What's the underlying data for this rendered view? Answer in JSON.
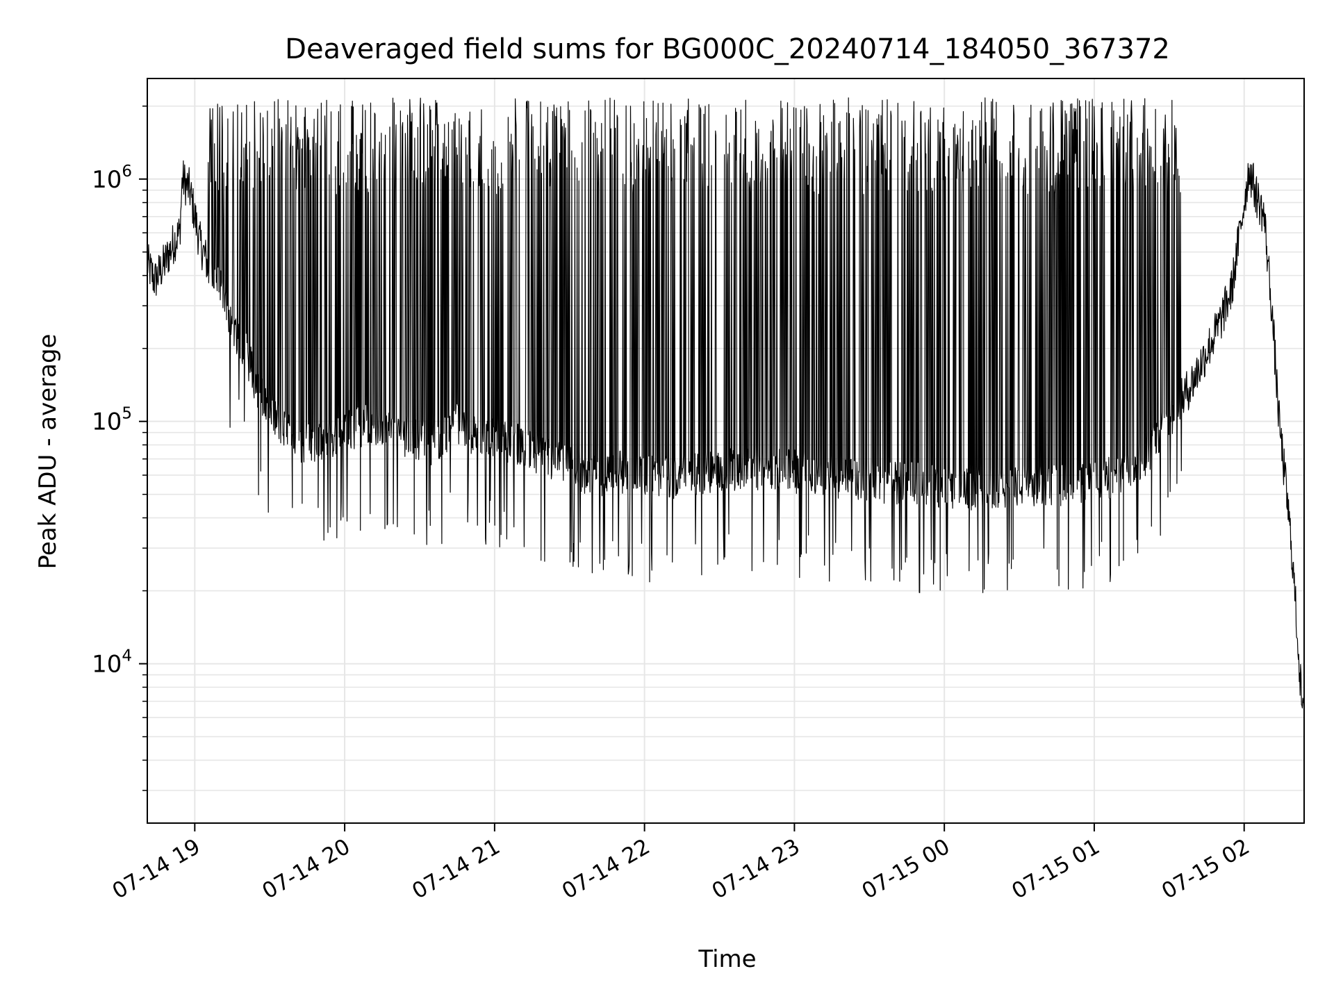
{
  "chart_data": {
    "type": "line",
    "title": "Deaveraged field sums for BG000C_20240714_184050_367372",
    "xlabel": "Time",
    "ylabel": "Peak ADU - average",
    "y_scale": "log",
    "ylim": [
      2200,
      2600000
    ],
    "xlim": [
      "2024-07-14 18:41",
      "2024-07-15 02:24"
    ],
    "x_ticks": [
      {
        "t": "2024-07-14 19:00",
        "label": "07-14 19"
      },
      {
        "t": "2024-07-14 20:00",
        "label": "07-14 20"
      },
      {
        "t": "2024-07-14 21:00",
        "label": "07-14 21"
      },
      {
        "t": "2024-07-14 22:00",
        "label": "07-14 22"
      },
      {
        "t": "2024-07-14 23:00",
        "label": "07-14 23"
      },
      {
        "t": "2024-07-15 00:00",
        "label": "07-15 00"
      },
      {
        "t": "2024-07-15 01:00",
        "label": "07-15 01"
      },
      {
        "t": "2024-07-15 02:00",
        "label": "07-15 02"
      }
    ],
    "y_major_ticks": [
      {
        "value": 10000,
        "base": "10",
        "exp": "4"
      },
      {
        "value": 100000,
        "base": "10",
        "exp": "5"
      },
      {
        "value": 1000000,
        "base": "10",
        "exp": "6"
      }
    ],
    "grid": true,
    "grid_minor": true,
    "line_color": "#000000",
    "grid_color": "#e6e6e6",
    "series": [
      {
        "x": [
          "2024-07-14 18:41",
          "2024-07-14 18:44",
          "2024-07-14 18:48",
          "2024-07-14 18:52",
          "2024-07-14 18:54",
          "2024-07-14 18:55",
          "2024-07-14 18:58",
          "2024-07-14 19:02",
          "2024-07-14 19:05",
          "2024-07-14 19:10",
          "2024-07-14 19:15",
          "2024-07-14 19:20",
          "2024-07-14 19:25",
          "2024-07-14 19:30",
          "2024-07-14 19:35",
          "2024-07-14 19:40",
          "2024-07-14 19:45",
          "2024-07-14 19:50",
          "2024-07-14 19:55",
          "2024-07-14 20:00",
          "2024-07-14 20:10",
          "2024-07-14 20:20",
          "2024-07-14 20:30",
          "2024-07-14 20:35",
          "2024-07-14 20:40",
          "2024-07-14 20:45",
          "2024-07-14 20:50",
          "2024-07-14 21:00",
          "2024-07-14 21:10",
          "2024-07-14 21:20",
          "2024-07-14 21:30",
          "2024-07-14 21:40",
          "2024-07-14 21:50",
          "2024-07-14 22:00",
          "2024-07-14 22:10",
          "2024-07-14 22:20",
          "2024-07-14 22:30",
          "2024-07-14 22:40",
          "2024-07-14 22:50",
          "2024-07-14 23:00",
          "2024-07-14 23:10",
          "2024-07-14 23:20",
          "2024-07-14 23:30",
          "2024-07-14 23:40",
          "2024-07-14 23:50",
          "2024-07-15 00:00",
          "2024-07-15 00:10",
          "2024-07-15 00:20",
          "2024-07-15 00:30",
          "2024-07-15 00:40",
          "2024-07-15 00:50",
          "2024-07-15 01:00",
          "2024-07-15 01:10",
          "2024-07-15 01:20",
          "2024-07-15 01:30",
          "2024-07-15 01:40",
          "2024-07-15 01:50",
          "2024-07-15 01:55",
          "2024-07-15 02:00",
          "2024-07-15 02:02",
          "2024-07-15 02:05",
          "2024-07-15 02:08",
          "2024-07-15 02:11",
          "2024-07-15 02:14",
          "2024-07-15 02:17",
          "2024-07-15 02:19",
          "2024-07-15 02:21",
          "2024-07-15 02:23",
          "2024-07-15 02:24"
        ],
        "y": [
          450000,
          380000,
          450000,
          560000,
          600000,
          1000000,
          900000,
          550000,
          450000,
          350000,
          250000,
          200000,
          140000,
          110000,
          95000,
          85000,
          80000,
          80000,
          85000,
          90000,
          100000,
          90000,
          85000,
          80000,
          90000,
          100000,
          90000,
          85000,
          80000,
          70000,
          65000,
          60000,
          62000,
          60000,
          58000,
          60000,
          62000,
          65000,
          63000,
          62000,
          60000,
          58000,
          57000,
          56000,
          55000,
          54000,
          53000,
          53000,
          54000,
          55000,
          55000,
          56000,
          60000,
          70000,
          100000,
          150000,
          250000,
          350000,
          800000,
          1100000,
          850000,
          700000,
          300000,
          100000,
          50000,
          30000,
          15000,
          7000,
          5500
        ]
      }
    ],
    "spikes": {
      "x_start": "2024-07-14 19:05",
      "x_end": "2024-07-15 01:35",
      "count": 720,
      "peak_level": 1500000,
      "floor_level": 50000
    }
  }
}
